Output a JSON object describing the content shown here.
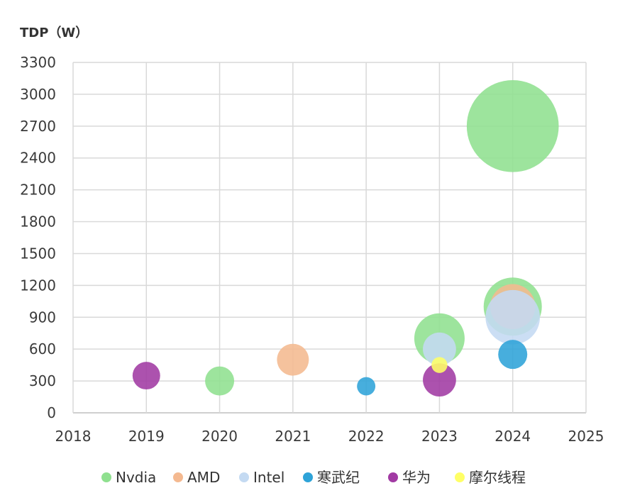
{
  "chart_data": {
    "type": "scatter",
    "ylabel": "TDP（W）",
    "xlabel": "",
    "xlim": [
      2018,
      2025
    ],
    "ylim": [
      0,
      3300
    ],
    "xticks": [
      2018,
      2019,
      2020,
      2021,
      2022,
      2023,
      2024,
      2025
    ],
    "yticks": [
      0,
      300,
      600,
      900,
      1200,
      1500,
      1800,
      2100,
      2400,
      2700,
      3000,
      3300
    ],
    "grid": true,
    "legend_position": "bottom",
    "series": [
      {
        "name": "Nvdia",
        "color": "#8fe08f",
        "points": [
          {
            "x": 2020,
            "y": 300,
            "size": 1
          },
          {
            "x": 2023,
            "y": 700,
            "size": 3
          },
          {
            "x": 2024,
            "y": 1000,
            "size": 4
          },
          {
            "x": 2024,
            "y": 2700,
            "size": 10
          }
        ]
      },
      {
        "name": "AMD",
        "color": "#f4b990",
        "points": [
          {
            "x": 2021,
            "y": 500,
            "size": 1.2
          },
          {
            "x": 2024,
            "y": 1000,
            "size": 2.4
          }
        ]
      },
      {
        "name": "Intel",
        "color": "#c4daf2",
        "points": [
          {
            "x": 2023,
            "y": 600,
            "size": 1.3
          },
          {
            "x": 2024,
            "y": 900,
            "size": 3.5
          }
        ]
      },
      {
        "name": "寒武纪",
        "color": "#2ea3d8",
        "points": [
          {
            "x": 2022,
            "y": 250,
            "size": 0.4
          },
          {
            "x": 2024,
            "y": 550,
            "size": 1
          }
        ]
      },
      {
        "name": "华为",
        "color": "#a13aa3",
        "points": [
          {
            "x": 2019,
            "y": 350,
            "size": 0.9
          },
          {
            "x": 2023,
            "y": 310,
            "size": 1.3
          }
        ]
      },
      {
        "name": "摩尔线程",
        "color": "#ffff66",
        "points": [
          {
            "x": 2023,
            "y": 450,
            "size": 0.3
          }
        ]
      }
    ]
  }
}
